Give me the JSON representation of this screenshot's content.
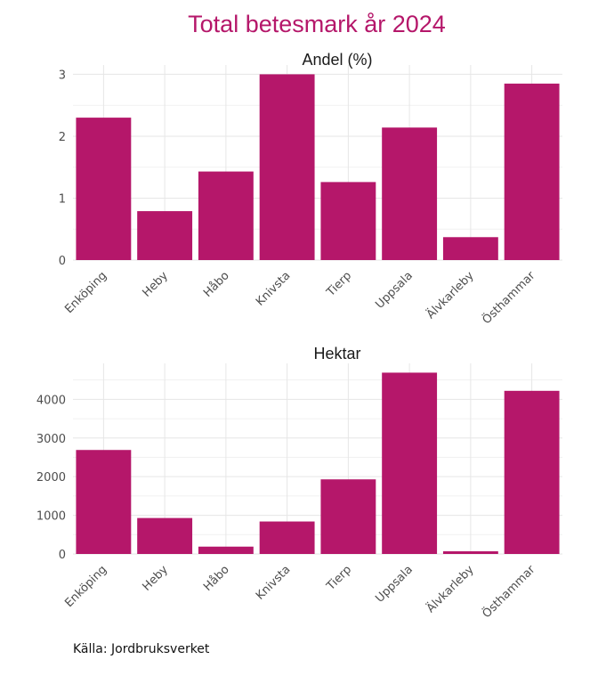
{
  "title": "Total betesmark år 2024",
  "caption": "Källa: Jordbruksverket",
  "colors": {
    "bar": "#b5176a",
    "title": "#b5176a"
  },
  "chart_data": [
    {
      "type": "bar",
      "title": "Andel (%)",
      "xlabel": "",
      "ylabel": "",
      "categories": [
        "Enköping",
        "Heby",
        "Håbo",
        "Knivsta",
        "Tierp",
        "Uppsala",
        "Älvkarleby",
        "Östhammar"
      ],
      "values": [
        2.3,
        0.79,
        1.43,
        3.0,
        1.26,
        2.14,
        0.37,
        2.85
      ],
      "ylim": [
        0,
        3.15
      ],
      "yticks": [
        0,
        1,
        2,
        3
      ],
      "ytick_labels": [
        "0",
        "1",
        "2",
        "3"
      ],
      "grid": true
    },
    {
      "type": "bar",
      "title": "Hektar",
      "xlabel": "",
      "ylabel": "",
      "categories": [
        "Enköping",
        "Heby",
        "Håbo",
        "Knivsta",
        "Tierp",
        "Uppsala",
        "Älvkarleby",
        "Östhammar"
      ],
      "values": [
        2690,
        930,
        190,
        840,
        1930,
        4690,
        70,
        4220
      ],
      "ylim": [
        0,
        4930
      ],
      "yticks": [
        0,
        1000,
        2000,
        3000,
        4000
      ],
      "ytick_labels": [
        "0",
        "1000",
        "2000",
        "3000",
        "4000"
      ],
      "grid": true
    }
  ]
}
